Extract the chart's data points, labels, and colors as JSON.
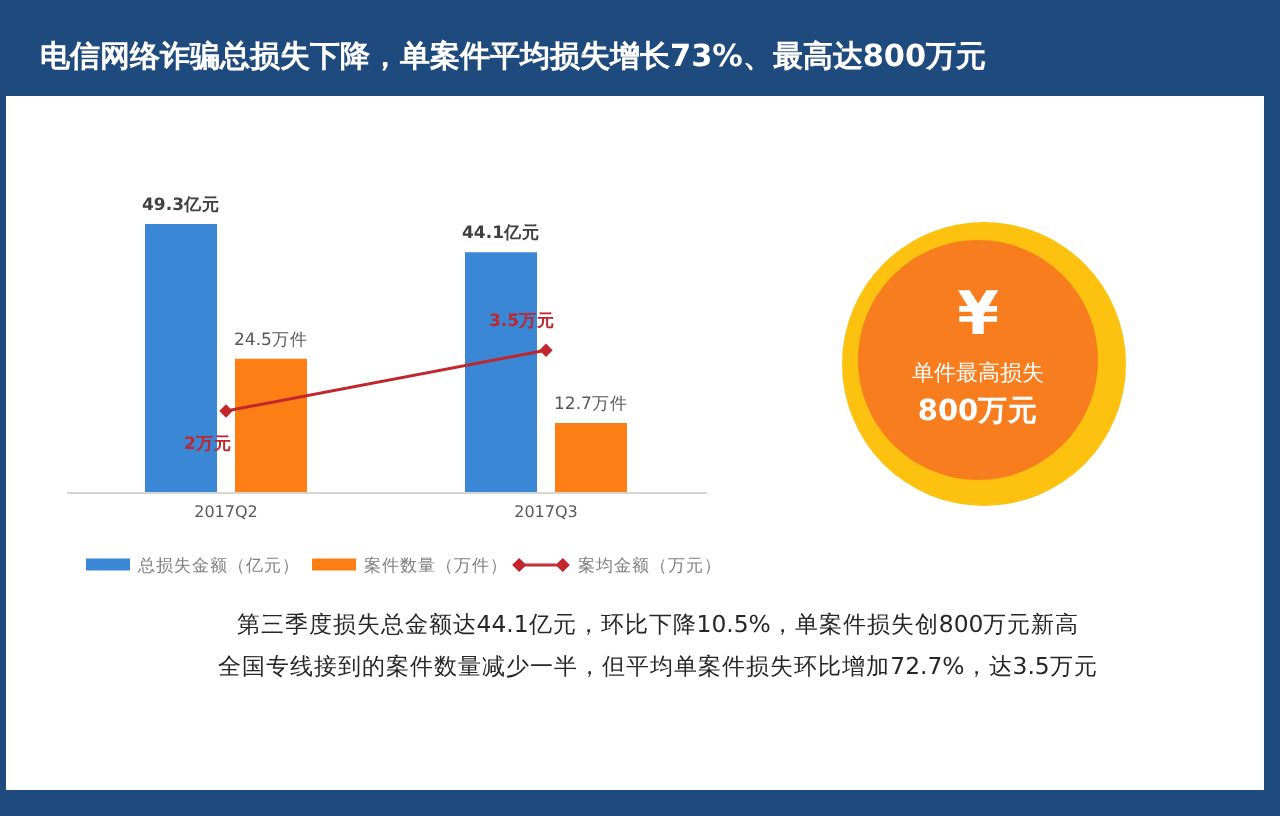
{
  "chart_data": {
    "type": "bar",
    "title": "电信网络诈骗总损失下降，单案件平均损失增长73%、最高达800万元",
    "categories": [
      "2017Q2",
      "2017Q3"
    ],
    "series": [
      {
        "name": "总损失金额（亿元）",
        "color": "#3a87d6",
        "values": [
          49.3,
          44.1
        ],
        "value_labels": [
          "49.3亿元",
          "44.1亿元"
        ]
      },
      {
        "name": "案件数量（万件）",
        "color": "#fd7e14",
        "values": [
          24.5,
          12.7
        ],
        "value_labels": [
          "24.5万件",
          "12.7万件"
        ]
      },
      {
        "name": "案均金额（万元）",
        "type": "line",
        "axis": "y2",
        "color": "#c0262c",
        "marker": "diamond",
        "values": [
          2,
          3.5
        ],
        "value_labels": [
          "2万元",
          "3.5万元"
        ]
      }
    ],
    "legend": "bottom",
    "annotations": [
      "¥",
      "单件最高损失",
      "800万元",
      "第三季度损失总金额达44.1亿元，环比下降10.5%，单案件损失创800万元新高",
      "全国专线接到的案件数量减少一半，但平均单案件损失环比增加72.7%，达3.5万元"
    ]
  }
}
